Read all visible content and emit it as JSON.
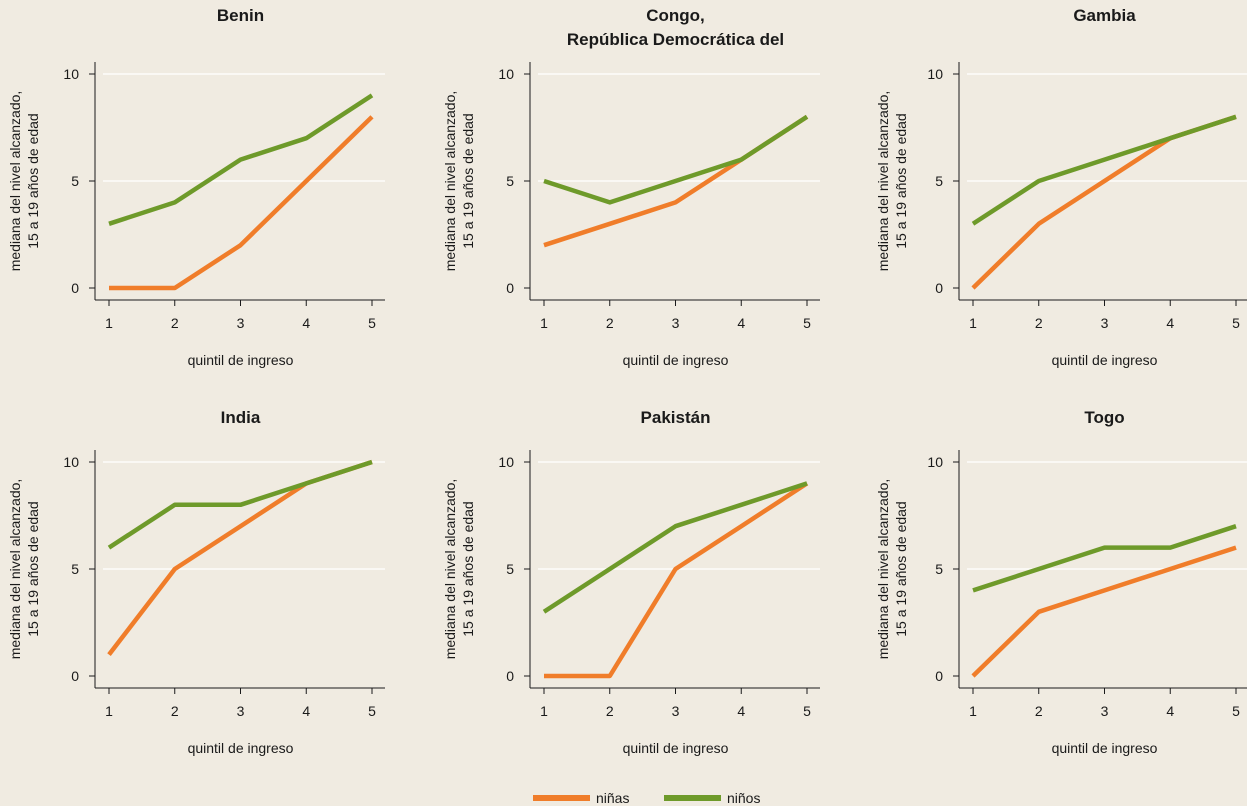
{
  "colors": {
    "background": "#f0ebe1",
    "ninas": "#f07d2a",
    "ninos": "#6e9a2a",
    "grid": "#ffffff",
    "axis": "#1a1a1a"
  },
  "legend": [
    {
      "key": "ninas",
      "label": "niñas"
    },
    {
      "key": "ninos",
      "label": "niños"
    }
  ],
  "chart_data": [
    {
      "type": "line",
      "title": [
        "Benin"
      ],
      "xlabel": "quintil de ingreso",
      "ylabel": [
        "mediana del nivel alcanzado,",
        "15 a 19 años de edad"
      ],
      "x": [
        1,
        2,
        3,
        4,
        5
      ],
      "ylim": [
        0,
        10
      ],
      "yticks": [
        0,
        5,
        10
      ],
      "grid": true,
      "series": [
        {
          "name": "niñas",
          "values": [
            0,
            0,
            2,
            5,
            8
          ]
        },
        {
          "name": "niños",
          "values": [
            3,
            4,
            6,
            7,
            9
          ]
        }
      ]
    },
    {
      "type": "line",
      "title": [
        "Congo,",
        "República Democrática del"
      ],
      "xlabel": "quintil de ingreso",
      "ylabel": [
        "mediana del nivel alcanzado,",
        "15 a 19 años de edad"
      ],
      "x": [
        1,
        2,
        3,
        4,
        5
      ],
      "ylim": [
        0,
        10
      ],
      "yticks": [
        0,
        5,
        10
      ],
      "grid": true,
      "series": [
        {
          "name": "niñas",
          "values": [
            2,
            3,
            4,
            6,
            8
          ]
        },
        {
          "name": "niños",
          "values": [
            5,
            4,
            5,
            6,
            8
          ]
        }
      ]
    },
    {
      "type": "line",
      "title": [
        "Gambia"
      ],
      "xlabel": "quintil de ingreso",
      "ylabel": [
        "mediana del nivel alcanzado,",
        "15 a 19 años de edad"
      ],
      "x": [
        1,
        2,
        3,
        4,
        5
      ],
      "ylim": [
        0,
        10
      ],
      "yticks": [
        0,
        5,
        10
      ],
      "grid": true,
      "series": [
        {
          "name": "niñas",
          "values": [
            0,
            3,
            5,
            7,
            8
          ]
        },
        {
          "name": "niños",
          "values": [
            3,
            5,
            6,
            7,
            8
          ]
        }
      ]
    },
    {
      "type": "line",
      "title": [
        "India"
      ],
      "xlabel": "quintil de ingreso",
      "ylabel": [
        "mediana del nivel alcanzado,",
        "15 a 19 años de edad"
      ],
      "x": [
        1,
        2,
        3,
        4,
        5
      ],
      "ylim": [
        0,
        10
      ],
      "yticks": [
        0,
        5,
        10
      ],
      "grid": true,
      "series": [
        {
          "name": "niñas",
          "values": [
            1,
            5,
            7,
            9,
            10
          ]
        },
        {
          "name": "niños",
          "values": [
            6,
            8,
            8,
            9,
            10
          ]
        }
      ]
    },
    {
      "type": "line",
      "title": [
        "Pakistán"
      ],
      "xlabel": "quintil de ingreso",
      "ylabel": [
        "mediana del nivel alcanzado,",
        "15 a 19 años de edad"
      ],
      "x": [
        1,
        2,
        3,
        4,
        5
      ],
      "ylim": [
        0,
        10
      ],
      "yticks": [
        0,
        5,
        10
      ],
      "grid": true,
      "series": [
        {
          "name": "niñas",
          "values": [
            0,
            0,
            5,
            7,
            9
          ]
        },
        {
          "name": "niños",
          "values": [
            3,
            5,
            7,
            8,
            9
          ]
        }
      ]
    },
    {
      "type": "line",
      "title": [
        "Togo"
      ],
      "xlabel": "quintil de ingreso",
      "ylabel": [
        "mediana del nivel alcanzado,",
        "15 a 19 años de edad"
      ],
      "x": [
        1,
        2,
        3,
        4,
        5
      ],
      "ylim": [
        0,
        10
      ],
      "yticks": [
        0,
        5,
        10
      ],
      "grid": true,
      "series": [
        {
          "name": "niñas",
          "values": [
            0,
            3,
            4,
            5,
            6
          ]
        },
        {
          "name": "niños",
          "values": [
            4,
            5,
            6,
            6,
            7
          ]
        }
      ]
    }
  ]
}
